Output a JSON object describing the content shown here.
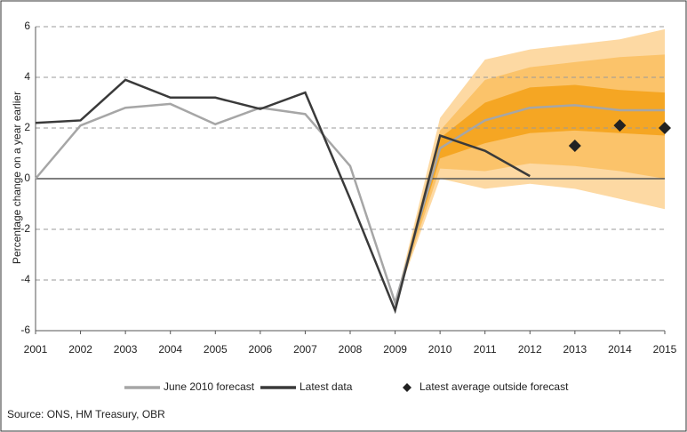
{
  "chart_data": {
    "type": "line",
    "y_label": "Percentage change on a year earlier",
    "source": "Source: ONS, HM Treasury, OBR",
    "x": [
      2001,
      2002,
      2003,
      2004,
      2005,
      2006,
      2007,
      2008,
      2009,
      2010,
      2011,
      2012,
      2013,
      2014,
      2015
    ],
    "xlim": [
      2001,
      2015
    ],
    "xticks": [
      2001,
      2002,
      2003,
      2004,
      2005,
      2006,
      2007,
      2008,
      2009,
      2010,
      2011,
      2012,
      2013,
      2014,
      2015
    ],
    "ylim": [
      -6,
      6
    ],
    "yticks": [
      -6,
      -4,
      -2,
      0,
      2,
      4,
      6
    ],
    "grid": true,
    "series": [
      {
        "name": "June 2010 forecast",
        "color": "#a6a6a6",
        "style": "line",
        "values": [
          0.0,
          2.1,
          2.8,
          2.95,
          2.15,
          2.8,
          2.55,
          0.5,
          -4.9,
          1.2,
          2.3,
          2.8,
          2.9,
          2.7,
          2.7
        ]
      },
      {
        "name": "Latest data",
        "color": "#3a3a3a",
        "style": "line",
        "values": [
          2.2,
          2.3,
          3.9,
          3.2,
          3.2,
          2.75,
          3.4,
          -0.8,
          -5.2,
          1.7,
          1.1,
          0.1,
          null,
          null,
          null
        ]
      },
      {
        "name": "Latest average outside forecast",
        "color": "#222222",
        "style": "diamond",
        "values": [
          null,
          null,
          null,
          null,
          null,
          null,
          null,
          null,
          null,
          null,
          null,
          null,
          1.3,
          2.1,
          2.0
        ]
      }
    ],
    "fan_x": [
      2008,
      2009,
      2010,
      2011,
      2012,
      2013,
      2014,
      2015
    ],
    "fan": [
      {
        "color": "#fdd9a3",
        "upper": [
          0.5,
          -4.9,
          2.4,
          4.7,
          5.1,
          5.3,
          5.5,
          5.9
        ],
        "lower": [
          0.5,
          -4.9,
          0.0,
          -0.4,
          -0.2,
          -0.4,
          -0.8,
          -1.2
        ]
      },
      {
        "color": "#fbc36a",
        "upper": [
          0.5,
          -4.9,
          1.9,
          3.9,
          4.4,
          4.6,
          4.8,
          4.9
        ],
        "lower": [
          0.5,
          -4.9,
          0.4,
          0.3,
          0.6,
          0.5,
          0.3,
          0.0
        ]
      },
      {
        "color": "#f5a623",
        "upper": [
          0.5,
          -4.9,
          1.6,
          3.0,
          3.6,
          3.7,
          3.5,
          3.4
        ],
        "lower": [
          0.5,
          -4.9,
          0.8,
          1.4,
          1.8,
          1.9,
          1.8,
          1.7
        ]
      }
    ]
  }
}
